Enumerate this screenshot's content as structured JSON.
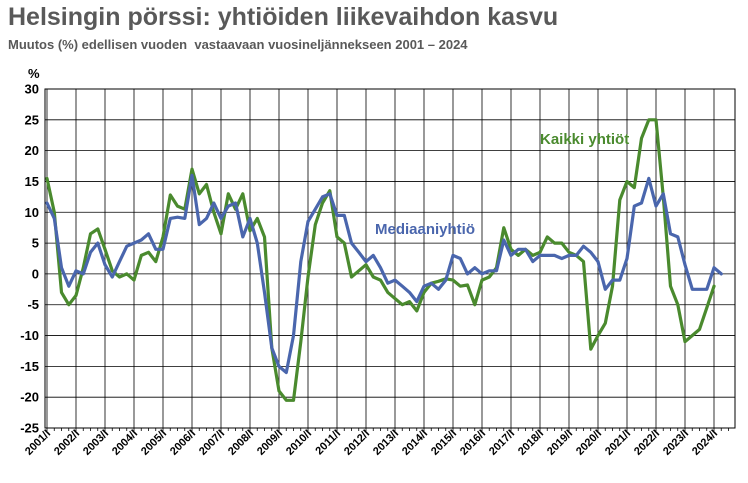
{
  "title": "Helsingin pörssi: yhtiöiden liikevaihdon kasvu",
  "subtitle": "Muutos (%) edellisen vuoden  vastaavaan vuosineljännekseen 2001 – 2024",
  "chart_data": {
    "type": "line",
    "ylabel": "%",
    "ylim": [
      -25,
      30
    ],
    "yticks": [
      30,
      25,
      20,
      15,
      10,
      5,
      0,
      -5,
      -10,
      -15,
      -20,
      -25
    ],
    "grid": true,
    "x_start_year": 2001,
    "x_tick_labels": [
      "2001/I",
      "2002/I",
      "2003/I",
      "2004/I",
      "2005/I",
      "2006/I",
      "2007/I",
      "2008/I",
      "2009/I",
      "2010/I",
      "2011/I",
      "2012/I",
      "2013/I",
      "2014/I",
      "2015/I",
      "2016/I",
      "2017/I",
      "2018/I",
      "2019/I",
      "2020/I",
      "2021/I",
      "2022/I",
      "2023/I",
      "2024/I"
    ],
    "series": [
      {
        "name": "Kaikki yhtiöt",
        "color": "#4a8a2e",
        "values": [
          15.5,
          10,
          -3,
          -5,
          -3.5,
          1,
          6.5,
          7.3,
          4,
          0.5,
          -0.5,
          0,
          -1,
          3,
          3.5,
          2,
          6,
          12.8,
          11,
          10.5,
          17,
          13,
          14.5,
          10,
          6.5,
          13,
          10.5,
          13,
          7,
          9,
          6,
          -12,
          -19,
          -20.5,
          -20.5,
          -11,
          -0.5,
          8,
          11.5,
          13.5,
          6,
          5,
          -0.5,
          0.5,
          1.5,
          -0.5,
          -1,
          -3,
          -4,
          -5,
          -4.5,
          -6,
          -3,
          -1.5,
          -1.2,
          -0.8,
          -1,
          -2,
          -1.8,
          -5,
          -1,
          -0.5,
          1,
          7.5,
          4,
          3,
          4,
          3,
          3.5,
          6,
          5,
          5,
          3.5,
          3,
          2,
          -12.2,
          -10,
          -8,
          -2,
          12,
          15,
          14,
          22,
          25,
          25,
          12.5,
          -2,
          -5,
          -11,
          -10,
          -9,
          -5.5,
          -2
        ]
      },
      {
        "name": "Mediaaniyhtiö",
        "color": "#4a66ad",
        "values": [
          11.5,
          9,
          1,
          -2,
          0.5,
          0,
          3.5,
          5,
          1.5,
          -0.5,
          2,
          4.5,
          5,
          5.5,
          6.5,
          4,
          4,
          9,
          9.2,
          9,
          16,
          8,
          9,
          11.5,
          9,
          11,
          11.5,
          6,
          9,
          5,
          -3,
          -12,
          -15,
          -16,
          -10,
          2,
          8.5,
          10.5,
          12.5,
          13,
          9.5,
          9.5,
          5,
          3.5,
          2,
          3,
          1,
          -1.5,
          -1,
          -2,
          -3,
          -4.5,
          -2,
          -1.5,
          -2.5,
          -1,
          3,
          2.5,
          0,
          1,
          0,
          0.5,
          0.5,
          5.5,
          3,
          4,
          4,
          2,
          3,
          3,
          3,
          2.5,
          3,
          3,
          4.5,
          3.5,
          2,
          -2.5,
          -1,
          -1,
          2.5,
          11,
          11.5,
          15.5,
          11,
          13,
          6.5,
          6,
          1.5,
          -2.5,
          -2.5,
          -2.5,
          1,
          0
        ]
      }
    ],
    "annotations": [
      {
        "text": "Kaikki yhtiöt",
        "series": "Kaikki yhtiöt"
      },
      {
        "text": "Mediaaniyhtiö",
        "series": "Mediaaniyhtiö"
      }
    ]
  }
}
